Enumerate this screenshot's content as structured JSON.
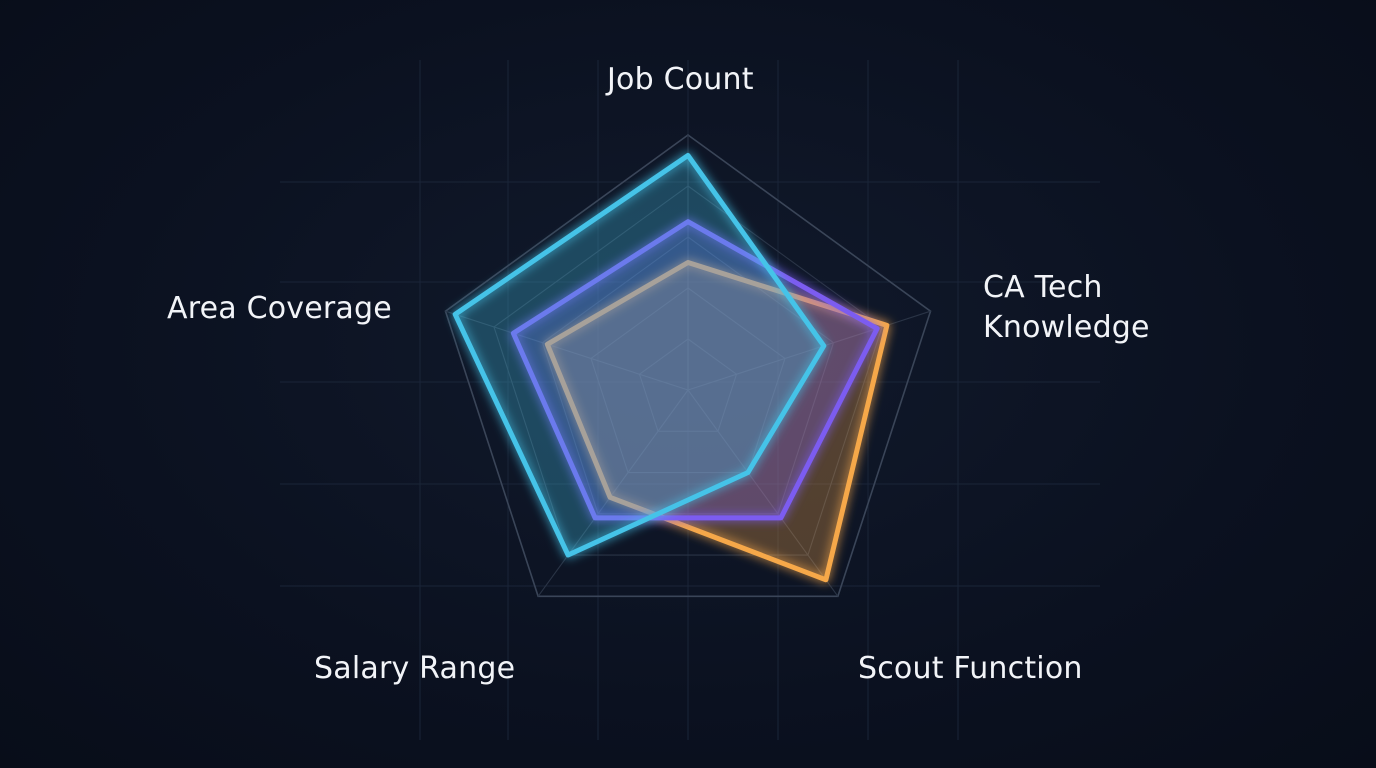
{
  "chart_data": {
    "type": "radar",
    "axes": [
      "Job Count",
      "CA Tech\nKnowledge",
      "Scout Function",
      "Salary Range",
      "Area Coverage"
    ],
    "rmax": 5,
    "rings": 5,
    "grid": true,
    "legend": "none",
    "series": [
      {
        "color": "#f6a84a",
        "values": [
          2.5,
          4.1,
          4.6,
          2.6,
          2.9
        ]
      },
      {
        "color": "#7c5cf0",
        "values": [
          3.3,
          3.9,
          3.1,
          3.1,
          3.6
        ]
      },
      {
        "color": "#45c3e8",
        "values": [
          4.6,
          2.8,
          2.0,
          4.0,
          4.8
        ]
      }
    ]
  }
}
